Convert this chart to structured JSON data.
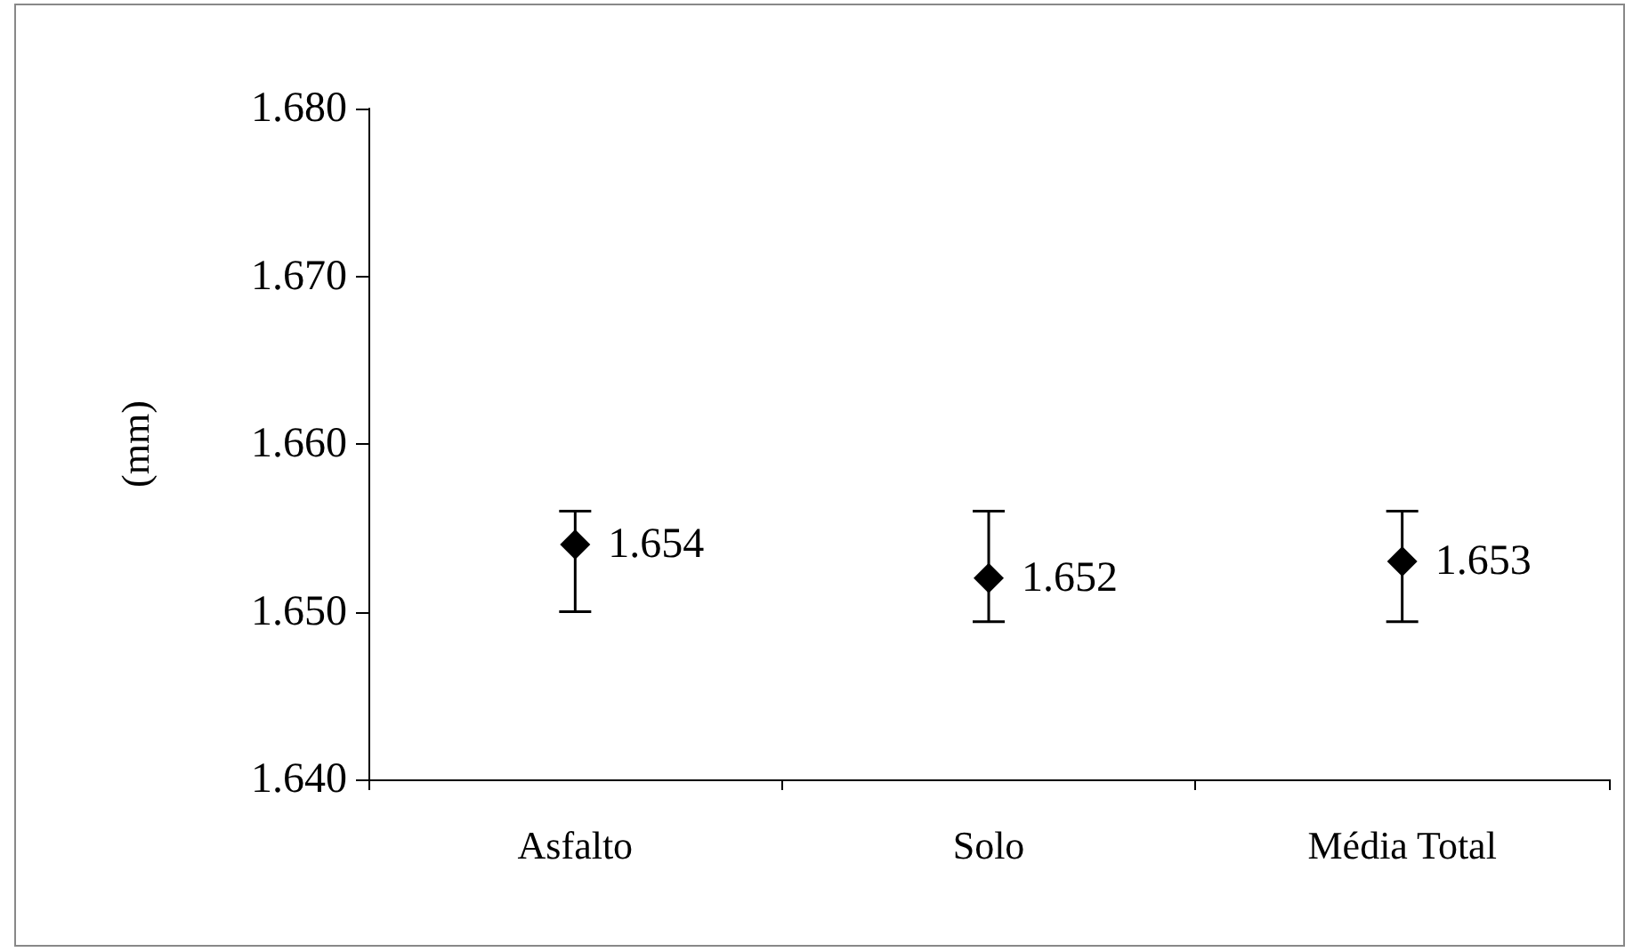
{
  "chart_data": {
    "type": "scatter",
    "ylabel": "(mm)",
    "categories": [
      "Asfalto",
      "Solo",
      "Média Total"
    ],
    "values": [
      1.654,
      1.652,
      1.653
    ],
    "errors": [
      [
        1.65,
        1.656
      ],
      [
        1.6494,
        1.656
      ],
      [
        1.6494,
        1.656
      ]
    ],
    "color": "#000000",
    "marker": "diamond",
    "data_labels": true,
    "grid": false,
    "ylim": [
      1.64,
      1.68
    ],
    "yticks": [
      {
        "value": 1.64,
        "label": "1.640"
      },
      {
        "value": 1.65,
        "label": "1.650"
      },
      {
        "value": 1.66,
        "label": "1.660"
      },
      {
        "value": 1.67,
        "label": "1.670"
      },
      {
        "value": 1.68,
        "label": "1.680"
      }
    ]
  }
}
